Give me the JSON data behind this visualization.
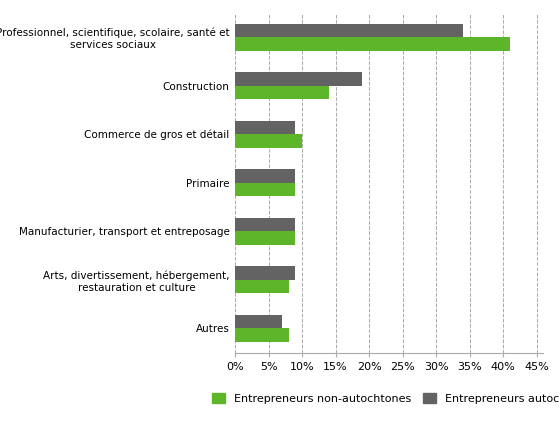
{
  "categories": [
    "Professionnel, scientifique, scolaire, santé et\nservices sociaux",
    "Construction",
    "Commerce de gros et détail",
    "Primaire",
    "Manufacturier, transport et entreposage",
    "Arts, divertissement, hébergement,\nrestauration et culture",
    "Autres"
  ],
  "non_autochtones": [
    0.41,
    0.14,
    0.1,
    0.09,
    0.09,
    0.08,
    0.08
  ],
  "autochtones": [
    0.34,
    0.19,
    0.09,
    0.09,
    0.09,
    0.09,
    0.07
  ],
  "color_non_autochtones": "#5db52a",
  "color_autochtones": "#636363",
  "xlabel_ticks": [
    0.0,
    0.05,
    0.1,
    0.15,
    0.2,
    0.25,
    0.3,
    0.35,
    0.4,
    0.45
  ],
  "xlabel_labels": [
    "0%",
    "5%",
    "10%",
    "15%",
    "20%",
    "25%",
    "30%",
    "35%",
    "40%",
    "45%"
  ],
  "legend_non_autochtones": "Entrepreneurs non-autochtones",
  "legend_autochtones": "Entrepreneurs autochtones",
  "background_color": "#ffffff",
  "bar_height": 0.28
}
